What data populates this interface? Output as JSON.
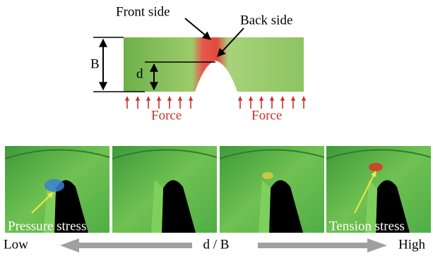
{
  "diagram": {
    "front_label": "Front side",
    "back_label": "Back side",
    "b_label": "B",
    "d_label": "d",
    "force_left": "Force",
    "force_right": "Force"
  },
  "panels": [
    {
      "label": "Pressure stress"
    },
    {
      "label": null
    },
    {
      "label": null
    },
    {
      "label": "Tension stress"
    }
  ],
  "scale": {
    "low": "Low",
    "axis": "d / B",
    "high": "High"
  }
}
